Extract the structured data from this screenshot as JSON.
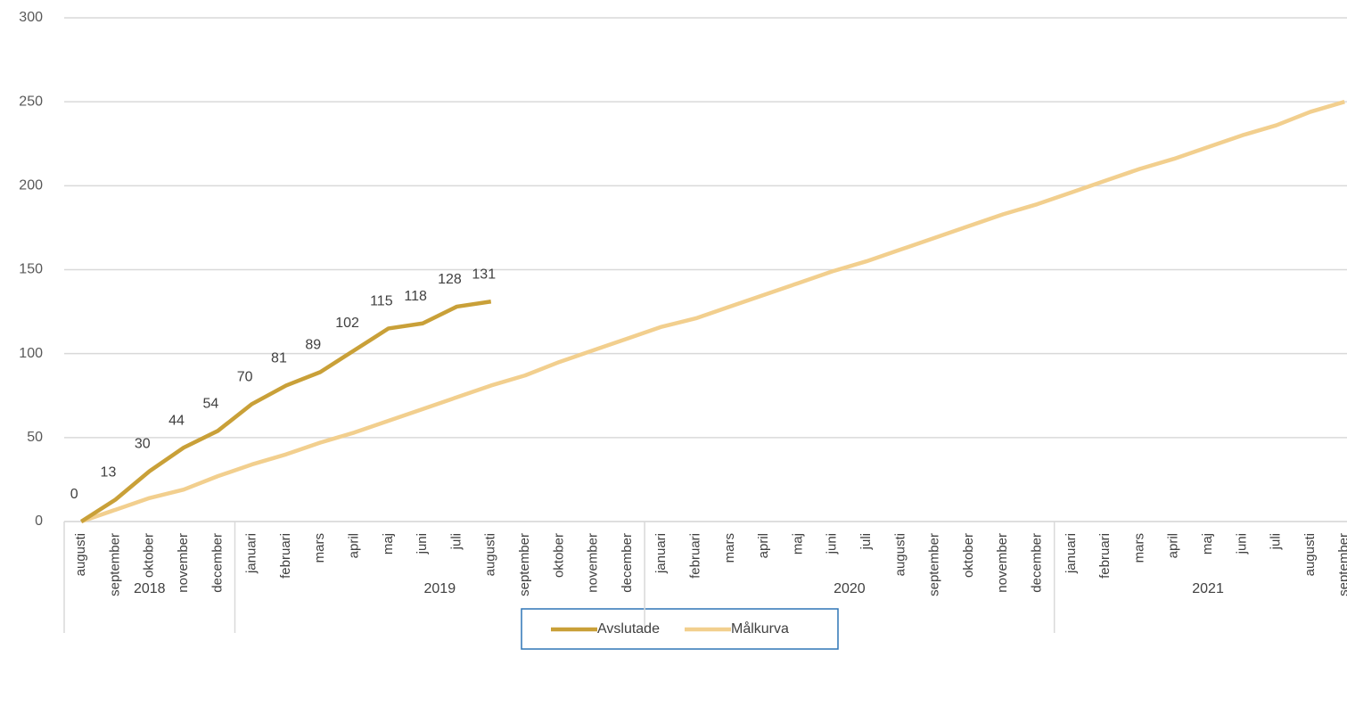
{
  "chart_data": {
    "type": "line",
    "groups": [
      {
        "label": "2018",
        "categories": [
          "augusti",
          "september",
          "oktober",
          "november",
          "december"
        ]
      },
      {
        "label": "2019",
        "categories": [
          "januari",
          "februari",
          "mars",
          "april",
          "maj",
          "juni",
          "juli",
          "augusti",
          "september",
          "oktober",
          "november",
          "december"
        ]
      },
      {
        "label": "2020",
        "categories": [
          "januari",
          "februari",
          "mars",
          "april",
          "maj",
          "juni",
          "juli",
          "augusti",
          "september",
          "oktober",
          "november",
          "december"
        ]
      },
      {
        "label": "2021",
        "categories": [
          "januari",
          "februari",
          "mars",
          "april",
          "maj",
          "juni",
          "juli",
          "augusti",
          "september"
        ]
      }
    ],
    "series": [
      {
        "name": "Avslutade",
        "color": "#c9a038",
        "data_labels": true,
        "values": [
          0,
          13,
          30,
          44,
          54,
          70,
          81,
          89,
          102,
          115,
          118,
          128,
          131,
          null,
          null,
          null,
          null,
          null,
          null,
          null,
          null,
          null,
          null,
          null,
          null,
          null,
          null,
          null,
          null,
          null,
          null,
          null,
          null,
          null,
          null,
          null,
          null,
          null
        ]
      },
      {
        "name": "Målkurva",
        "color": "#f2cf8e",
        "data_labels": false,
        "values": [
          0,
          7,
          14,
          19,
          27,
          34,
          40,
          47,
          53,
          60,
          67,
          74,
          81,
          87,
          95,
          102,
          109,
          116,
          121,
          128,
          135,
          142,
          149,
          155,
          162,
          169,
          176,
          183,
          189,
          196,
          203,
          210,
          216,
          223,
          230,
          236,
          244,
          250
        ]
      }
    ],
    "ylim": [
      0,
      300
    ],
    "yticks": [
      0,
      50,
      100,
      150,
      200,
      250,
      300
    ],
    "grid": true,
    "legend": "bottom"
  }
}
